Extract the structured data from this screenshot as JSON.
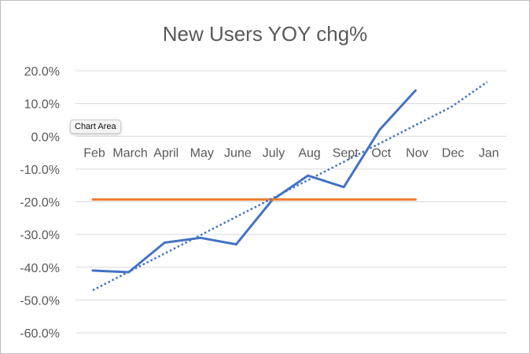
{
  "chart_data": {
    "type": "line",
    "title": "New Users YOY chg%",
    "xlabel": "",
    "ylabel": "",
    "categories": [
      "Feb",
      "March",
      "April",
      "May",
      "June",
      "July",
      "Aug",
      "Sept",
      "Oct",
      "Nov",
      "Dec",
      "Jan"
    ],
    "y_ticks": [
      "20.0%",
      "10.0%",
      "0.0%",
      "-10.0%",
      "-20.0%",
      "-30.0%",
      "-40.0%",
      "-50.0%",
      "-60.0%"
    ],
    "ylim": [
      -60,
      20
    ],
    "y_format": "percent",
    "grid": true,
    "legend": "none",
    "series": [
      {
        "color": "#4472c4",
        "style": "solid",
        "values": [
          -41.0,
          -41.5,
          -32.5,
          -31.0,
          -33.0,
          -19.5,
          -12.0,
          -15.5,
          2.0,
          14.0,
          null,
          null
        ]
      },
      {
        "color": "#ed7d31",
        "style": "solid",
        "values": [
          -19.3,
          -19.3,
          -19.3,
          -19.3,
          -19.3,
          -19.3,
          -19.3,
          -19.3,
          -19.3,
          -19.3,
          null,
          null
        ]
      },
      {
        "color": "#4472c4",
        "style": "dotted",
        "trendline": "linear",
        "values": [
          -47.0,
          -41.4,
          -35.8,
          -30.2,
          -24.6,
          -19.0,
          -13.4,
          -7.8,
          -2.2,
          3.4,
          9.0,
          16.6
        ]
      }
    ]
  },
  "tooltip": {
    "text": "Chart Area"
  }
}
